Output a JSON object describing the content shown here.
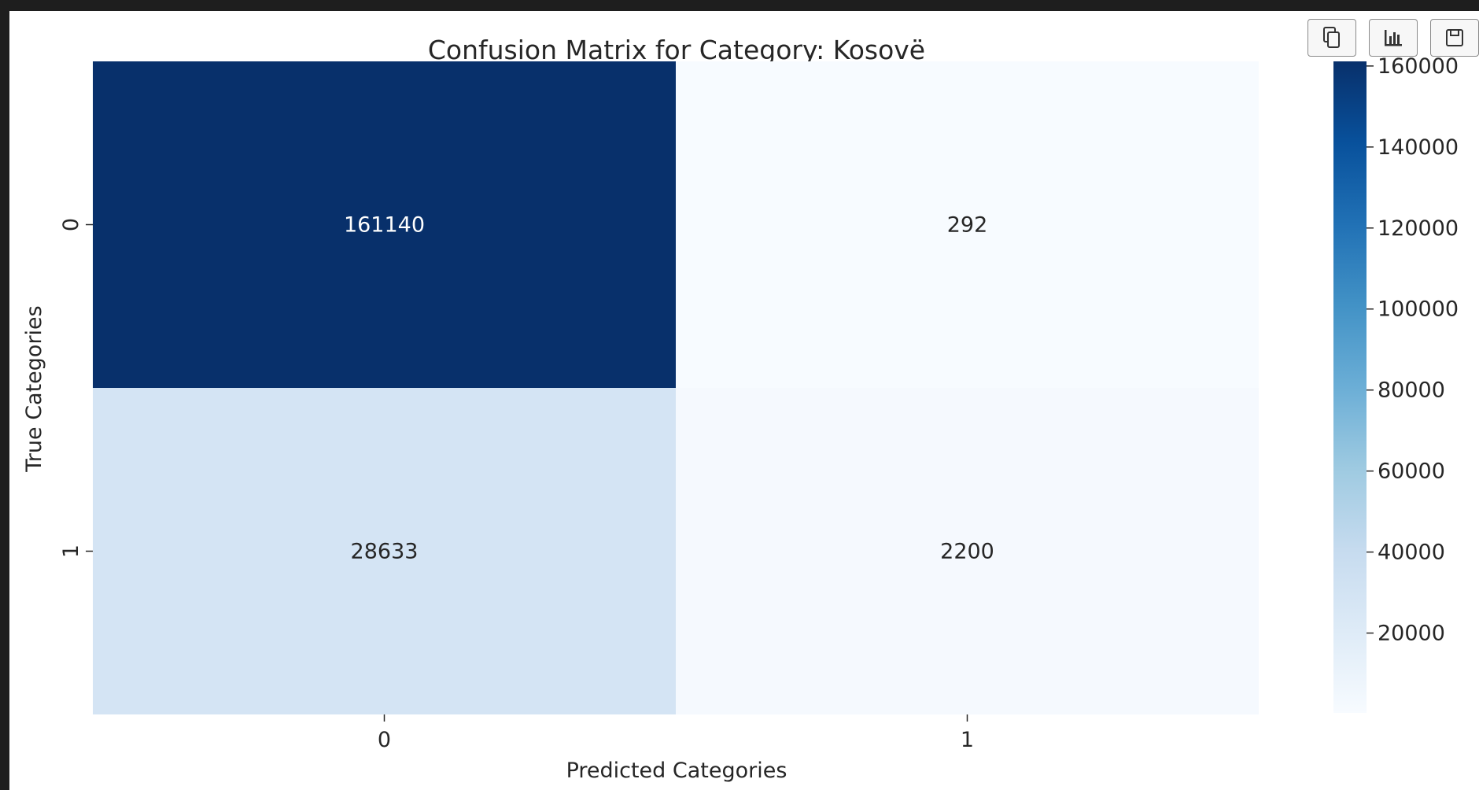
{
  "toolbar": {
    "buttons": [
      {
        "icon": "copy-icon"
      },
      {
        "icon": "bar-chart-icon"
      },
      {
        "icon": "save-icon"
      }
    ]
  },
  "chart_data": {
    "type": "heatmap",
    "title": "Confusion Matrix for Category: Kosovë",
    "xlabel": "Predicted Categories",
    "ylabel": "True Categories",
    "x_categories": [
      "0",
      "1"
    ],
    "y_categories": [
      "0",
      "1"
    ],
    "matrix": [
      [
        161140,
        292
      ],
      [
        28633,
        2200
      ]
    ],
    "annotations": [
      [
        "161140",
        "292"
      ],
      [
        "28633",
        "2200"
      ]
    ],
    "colormap": "Blues",
    "colormap_stops": [
      "#f7fbff",
      "#deebf7",
      "#c6dbef",
      "#9ecae1",
      "#6baed6",
      "#4292c6",
      "#2171b5",
      "#08519c",
      "#08306b"
    ],
    "colorbar": {
      "vmin": 292,
      "vmax": 161140,
      "ticks": [
        20000,
        40000,
        60000,
        80000,
        100000,
        120000,
        140000,
        160000
      ],
      "tick_labels": [
        "20000",
        "40000",
        "60000",
        "80000",
        "100000",
        "120000",
        "140000",
        "160000"
      ]
    },
    "grid": false
  }
}
